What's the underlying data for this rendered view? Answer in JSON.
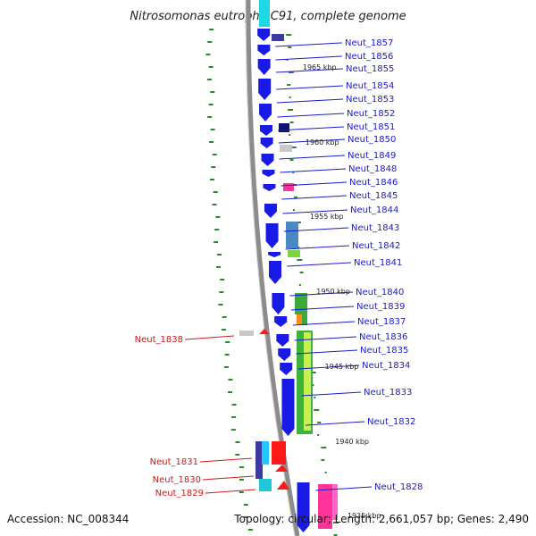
{
  "title": "Nitrosomonas eutropha C91, complete genome",
  "footer": {
    "accession": "Accession: NC_008344",
    "stats": "Topology: circular; Length: 2,661,057 bp; Genes: 2,490"
  },
  "colors": {
    "backbone": "#8c8c8c",
    "cds_forward": "#1a1ae6",
    "label_forward": "#1a1acc",
    "label_reverse": "#cc1a1a",
    "gc_ticks": "#2a8a2a"
  },
  "kbp_marks": [
    "1965 kbp",
    "1960 kbp",
    "1955 kbp",
    "1950 kbp",
    "1945 kbp",
    "1940 kbp",
    "1935 kbp"
  ],
  "forward_labels": [
    "Neut_1857",
    "Neut_1856",
    "Neut_1855",
    "Neut_1854",
    "Neut_1853",
    "Neut_1852",
    "Neut_1851",
    "Neut_1850",
    "Neut_1849",
    "Neut_1848",
    "Neut_1846",
    "Neut_1845",
    "Neut_1844",
    "Neut_1843",
    "Neut_1842",
    "Neut_1841",
    "Neut_1840",
    "Neut_1839",
    "Neut_1837",
    "Neut_1836",
    "Neut_1835",
    "Neut_1834",
    "Neut_1833",
    "Neut_1832",
    "Neut_1828"
  ],
  "reverse_labels": [
    "Neut_1838",
    "Neut_1831",
    "Neut_1830",
    "Neut_1829"
  ]
}
